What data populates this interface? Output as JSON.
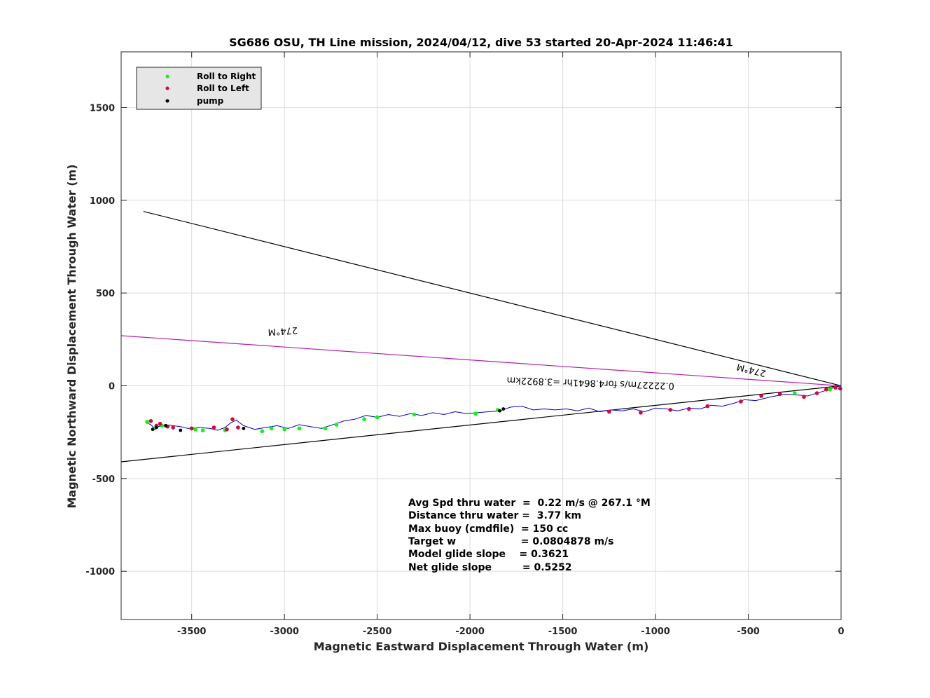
{
  "chart_data": {
    "type": "scatter",
    "title": "SG686 OSU, TH Line mission, 2024/04/12, dive 53 started 20-Apr-2024 11:46:41",
    "xlabel": "Magnetic Eastward Displacement Through Water (m)",
    "ylabel": "Magnetic Northward Displacement Through Water (m)",
    "xlim": [
      -3880,
      0
    ],
    "ylim": [
      -1260,
      1800
    ],
    "xticks": [
      -3500,
      -3000,
      -2500,
      -2000,
      -1500,
      -1000,
      -500,
      0
    ],
    "yticks": [
      -1000,
      -500,
      0,
      500,
      1000,
      1500
    ],
    "grid": true,
    "legend_position": "top-left",
    "legend": [
      {
        "label": "Roll to Right",
        "color": "#00ff00"
      },
      {
        "label": "Roll to Left",
        "color": "#e2003c"
      },
      {
        "label": "pump",
        "color": "#000000"
      }
    ],
    "lines": [
      {
        "color": "#000000",
        "x": [
          0,
          -3760
        ],
        "y": [
          0,
          940
        ]
      },
      {
        "color": "#000000",
        "x": [
          0,
          -3880
        ],
        "y": [
          0,
          -410
        ]
      },
      {
        "color": "#b020b0",
        "x": [
          0,
          -3880
        ],
        "y": [
          0,
          270
        ]
      }
    ],
    "annotations": [
      {
        "text": "274°M",
        "x": -3010,
        "y": 310,
        "rotate": 176
      },
      {
        "text": "274°M",
        "x": -480,
        "y": 100,
        "rotate": 194
      },
      {
        "text": "0.22227m/s for4.8641hr =3.8922km",
        "x": -1350,
        "y": 30,
        "rotate": 182
      }
    ],
    "track": {
      "color": "#0000cc",
      "x": [
        0,
        -40,
        -80,
        -130,
        -180,
        -230,
        -300,
        -380,
        -460,
        -520,
        -580,
        -640,
        -700,
        -760,
        -820,
        -880,
        -940,
        -1000,
        -1060,
        -1120,
        -1180,
        -1240,
        -1300,
        -1360,
        -1420,
        -1480,
        -1540,
        -1600,
        -1660,
        -1720,
        -1780,
        -1840,
        -1900,
        -1960,
        -2020,
        -2080,
        -2140,
        -2200,
        -2260,
        -2320,
        -2380,
        -2440,
        -2500,
        -2560,
        -2620,
        -2680,
        -2740,
        -2800,
        -2860,
        -2920,
        -2980,
        -3040,
        -3100,
        -3160,
        -3220,
        -3260,
        -3290,
        -3320,
        -3360,
        -3400,
        -3460,
        -3520,
        -3560,
        -3600,
        -3640,
        -3680,
        -3700,
        -3720,
        -3740
      ],
      "y": [
        0,
        -10,
        -25,
        -40,
        -55,
        -50,
        -45,
        -60,
        -80,
        -75,
        -95,
        -110,
        -105,
        -125,
        -120,
        -135,
        -125,
        -120,
        -140,
        -125,
        -135,
        -130,
        -140,
        -120,
        -135,
        -125,
        -130,
        -125,
        -130,
        -110,
        -115,
        -135,
        -140,
        -145,
        -150,
        -140,
        -155,
        -145,
        -160,
        -150,
        -165,
        -155,
        -170,
        -160,
        -180,
        -190,
        -210,
        -230,
        -220,
        -210,
        -230,
        -215,
        -225,
        -235,
        -215,
        -185,
        -200,
        -225,
        -240,
        -230,
        -225,
        -230,
        -220,
        -215,
        -210,
        -220,
        -230,
        -210,
        -200
      ]
    },
    "roll_right": {
      "x": [
        -3740,
        -3700,
        -3660,
        -3480,
        -3440,
        -3320,
        -3120,
        -3070,
        -3000,
        -2920,
        -2780,
        -2720,
        -2570,
        -2500,
        -2300,
        -1970,
        -1850,
        -250,
        -60
      ],
      "y": [
        -195,
        -230,
        -215,
        -235,
        -240,
        -240,
        -245,
        -230,
        -235,
        -230,
        -230,
        -210,
        -180,
        -170,
        -155,
        -150,
        -130,
        -40,
        -20
      ]
    },
    "roll_left": {
      "x": [
        -3720,
        -3690,
        -3670,
        -3630,
        -3600,
        -3500,
        -3380,
        -3310,
        -3280,
        -3250,
        -1250,
        -1080,
        -920,
        -820,
        -720,
        -540,
        -430,
        -330,
        -200,
        -130,
        -80,
        -30,
        -5
      ],
      "y": [
        -190,
        -215,
        -205,
        -220,
        -225,
        -230,
        -225,
        -235,
        -180,
        -225,
        -140,
        -145,
        -130,
        -125,
        -110,
        -85,
        -55,
        -45,
        -60,
        -40,
        -20,
        -10,
        -15
      ]
    },
    "pump": {
      "x": [
        -3710,
        -3690,
        -3640,
        -3560,
        -3220,
        -1840,
        -1820
      ],
      "y": [
        -235,
        -225,
        -215,
        -240,
        -230,
        -135,
        -125
      ]
    },
    "stats": [
      "Avg Spd thru water  =  0.22 m/s @ 267.1 °M",
      "Distance thru water =  3.77 km",
      "Max buoy (cmdfile)  = 150 cc",
      "Target w                   = 0.0804878 m/s",
      "Model glide slope    = 0.3621",
      "Net glide slope         = 0.5252"
    ]
  }
}
